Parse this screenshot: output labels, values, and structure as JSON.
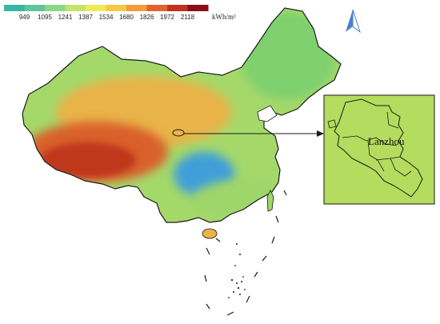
{
  "legend": {
    "ticks": [
      "949",
      "1095",
      "1241",
      "1387",
      "1534",
      "1680",
      "1826",
      "1972",
      "2118"
    ],
    "unit": "kWh/m²",
    "colors": [
      "#37b6a2",
      "#5cc69a",
      "#8cd685",
      "#c2e36c",
      "#eeea55",
      "#f5c944",
      "#f29b38",
      "#e0652b",
      "#c2321f",
      "#8a0f1c"
    ]
  },
  "north_arrow": {
    "icon": "north-arrow-icon",
    "color": "#4a7fd0"
  },
  "inset": {
    "city_label": "Lanzhou"
  },
  "colors": {
    "north_main": "#a4d96a",
    "northeast": "#7fd06e",
    "northwest": "#e9b448",
    "tibet": "#d9602b",
    "tibet_core": "#c0391f",
    "sichuan_basin": "#3f9fd9",
    "south": "#9ed66b",
    "inset_fill": "#b4dc5e",
    "border": "#1a1a1a"
  }
}
